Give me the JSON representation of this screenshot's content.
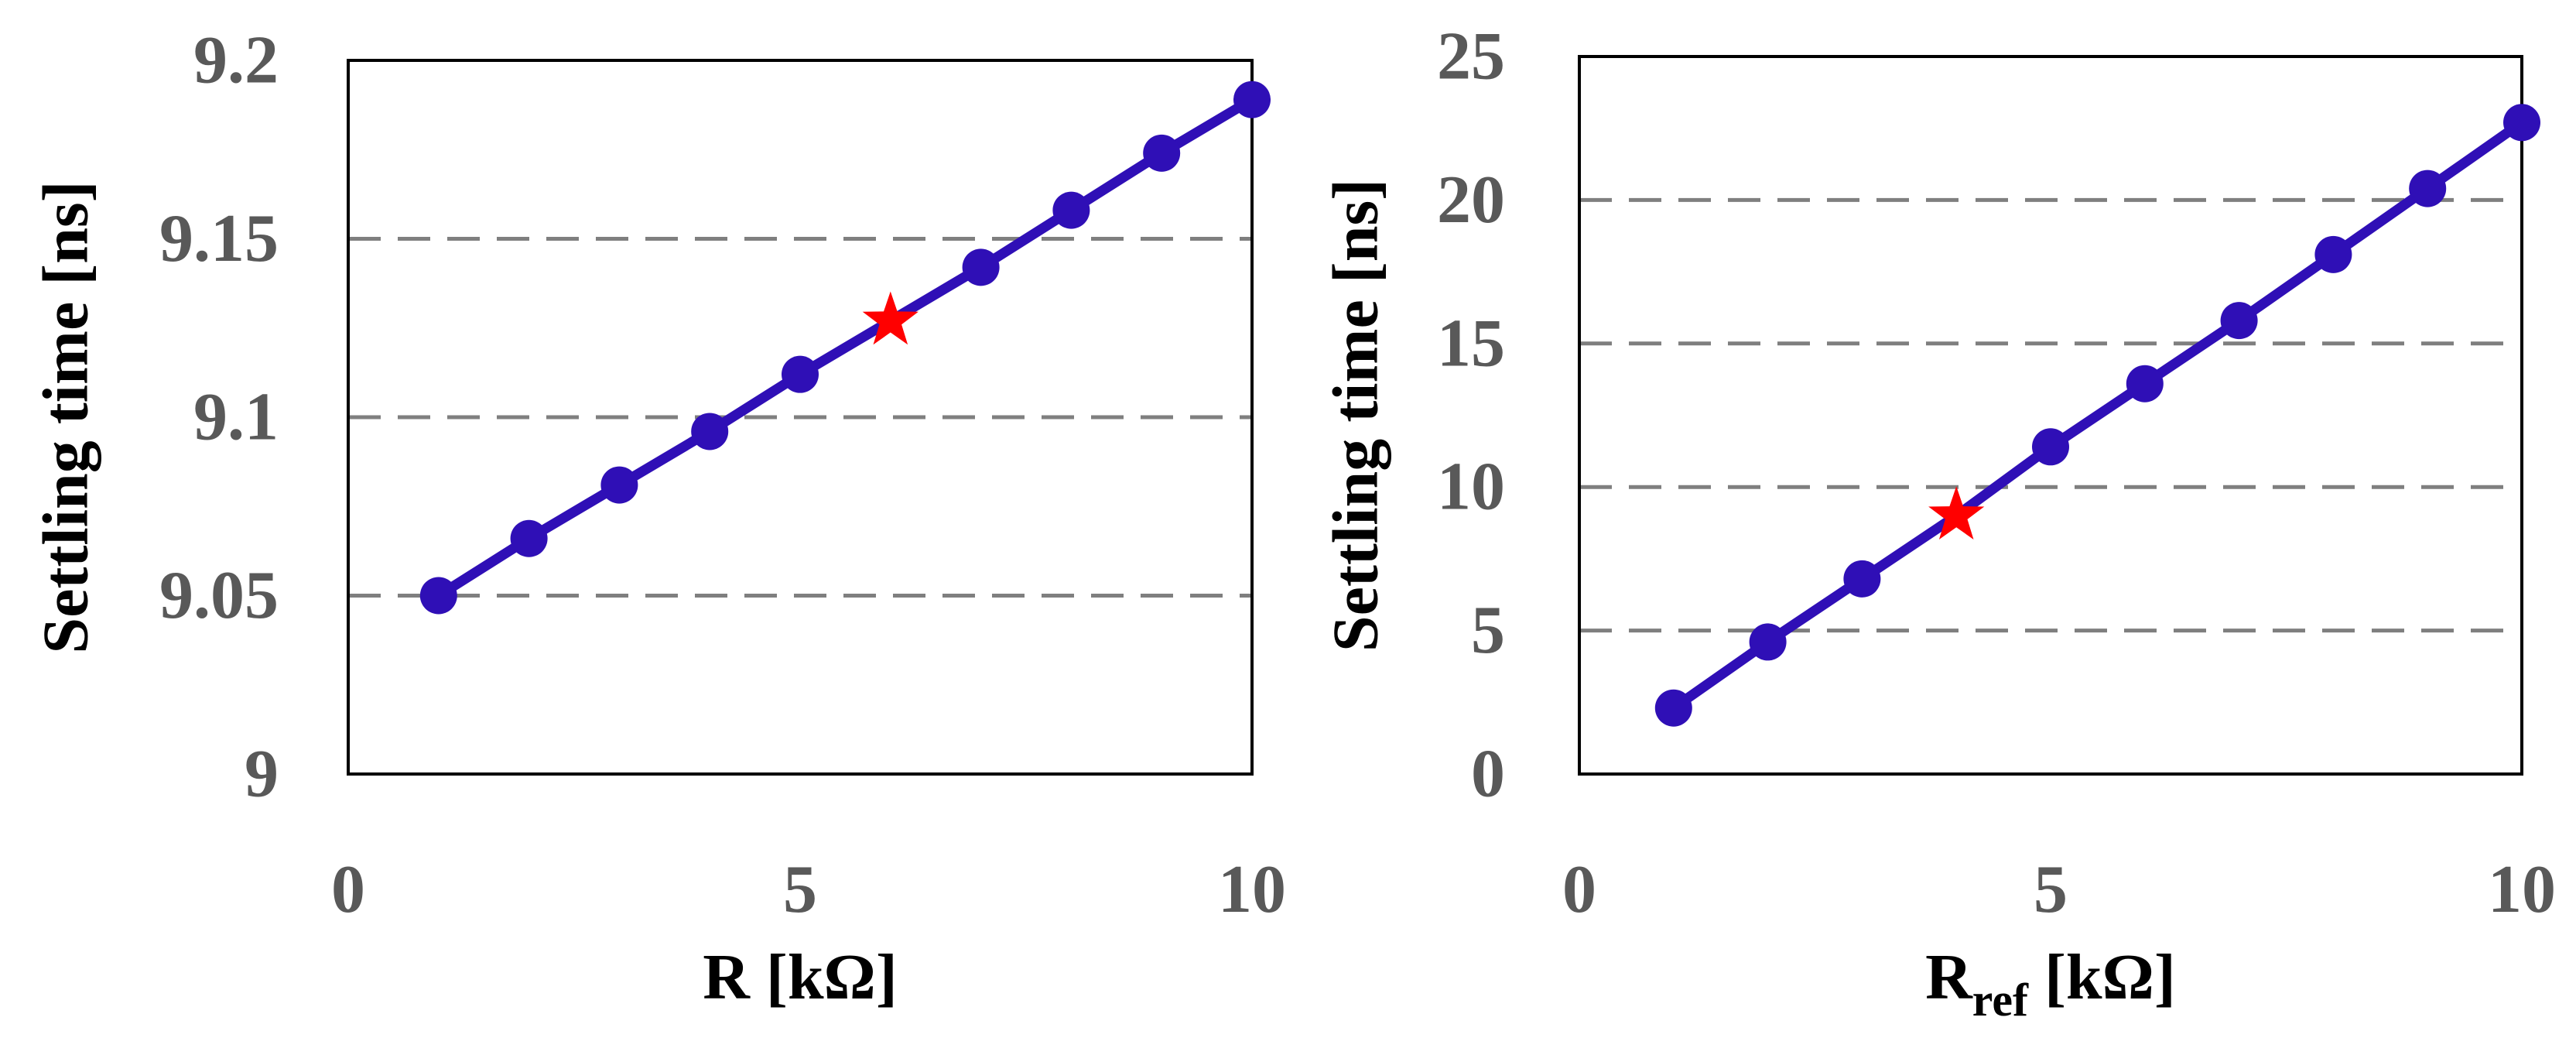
{
  "chart_data": [
    {
      "type": "line",
      "xlabel": "R [kΩ]",
      "ylabel": "Settling time [ns]",
      "xlim": [
        0,
        10
      ],
      "ylim": [
        9,
        9.2
      ],
      "x_ticks": [
        "0",
        "5",
        "10"
      ],
      "y_ticks": [
        "9",
        "9.05",
        "9.1",
        "9.15",
        "9.2"
      ],
      "y_grid": "dashed horizontal gridlines",
      "series": [
        {
          "x": [
            1,
            2,
            3,
            4,
            5,
            6,
            7,
            8,
            9,
            10
          ],
          "y": [
            9.05,
            9.066,
            9.081,
            9.096,
            9.112,
            9.127,
            9.142,
            9.158,
            9.174,
            9.189
          ]
        }
      ],
      "highlight": {
        "x": 6,
        "y": 9.127,
        "marker": "star"
      }
    },
    {
      "type": "line",
      "xlabel": "Rref [kΩ]",
      "xlabel_main": "R",
      "xlabel_sub": "ref",
      "xlabel_rest": " [kΩ]",
      "ylabel": "Settling time [ns]",
      "xlim": [
        0,
        10
      ],
      "ylim": [
        0,
        25
      ],
      "x_ticks": [
        "0",
        "5",
        "10"
      ],
      "y_ticks": [
        "0",
        "5",
        "10",
        "15",
        "20",
        "25"
      ],
      "y_grid": "dashed horizontal gridlines",
      "series": [
        {
          "x": [
            1,
            2,
            3,
            4,
            5,
            6,
            7,
            8,
            9,
            10
          ],
          "y": [
            2.3,
            4.6,
            6.8,
            9.0,
            11.4,
            13.6,
            15.8,
            18.1,
            20.4,
            22.7
          ]
        }
      ],
      "highlight": {
        "x": 4,
        "y": 9.0,
        "marker": "star"
      }
    }
  ],
  "colors": {
    "line": "#2F0FB6",
    "marker": "#2F0FB6",
    "highlight": "#FF0000",
    "grid": "#7F7F7F",
    "frame": "#000000",
    "tick_text": "#595959"
  }
}
